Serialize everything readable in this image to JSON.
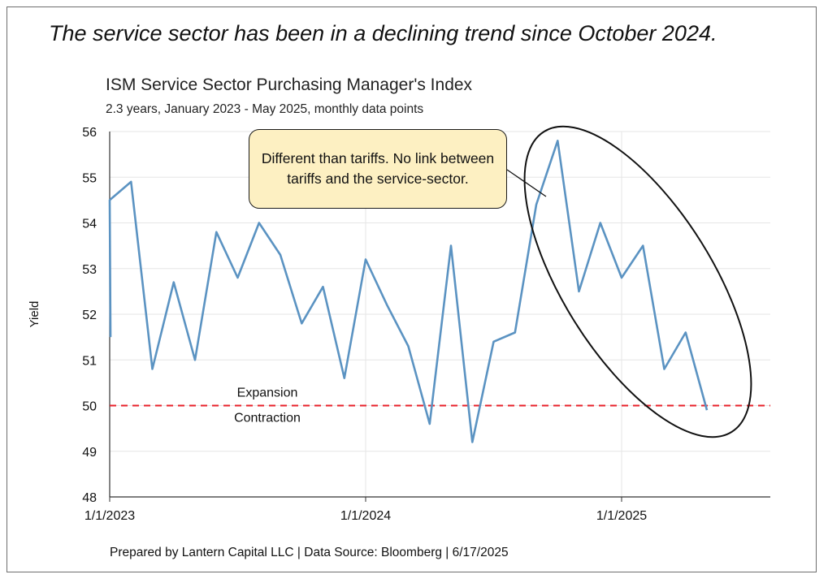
{
  "headline": "The service sector has been in a declining trend since October 2024.",
  "footer": "Prepared by Lantern Capital LLC | Data Source: Bloomberg | 6/17/2025",
  "callout": "Different than tariffs. No link between tariffs and the service-sector.",
  "chart_data": {
    "type": "line",
    "title": "ISM Service Sector Purchasing Manager's Index",
    "subtitle": "2.3 years, January 2023 - May 2025, monthly data points",
    "xlabel": "",
    "ylabel": "Yield",
    "ylim": [
      48,
      56
    ],
    "yticks": [
      48,
      49,
      50,
      51,
      52,
      53,
      54,
      55,
      56
    ],
    "xticks": [
      "1/1/2023",
      "1/1/2024",
      "1/1/2025"
    ],
    "grid": true,
    "series": [
      {
        "color": "#5b93c2",
        "x": [
          "2023-01",
          "2023-02",
          "2023-03",
          "2023-04",
          "2023-05",
          "2023-06",
          "2023-07",
          "2023-08",
          "2023-09",
          "2023-10",
          "2023-11",
          "2023-12",
          "2024-01",
          "2024-02",
          "2024-03",
          "2024-04",
          "2024-05",
          "2024-06",
          "2024-07",
          "2024-08",
          "2024-09",
          "2024-10",
          "2024-11",
          "2024-12",
          "2025-01",
          "2025-02",
          "2025-03",
          "2025-04",
          "2025-05"
        ],
        "values": [
          54.5,
          54.9,
          50.8,
          52.7,
          51.0,
          53.8,
          52.8,
          54.0,
          53.3,
          51.8,
          52.6,
          50.6,
          53.2,
          52.2,
          51.3,
          49.6,
          53.5,
          49.2,
          51.4,
          51.6,
          54.4,
          55.8,
          52.5,
          54.0,
          52.8,
          53.5,
          50.8,
          51.6,
          49.9
        ]
      }
    ],
    "reference_line": {
      "value": 50,
      "color": "#e8202a",
      "style": "dashed",
      "label_above": "Expansion",
      "label_below": "Contraction"
    },
    "annotation": "ellipse around October 2024 - May 2025"
  }
}
